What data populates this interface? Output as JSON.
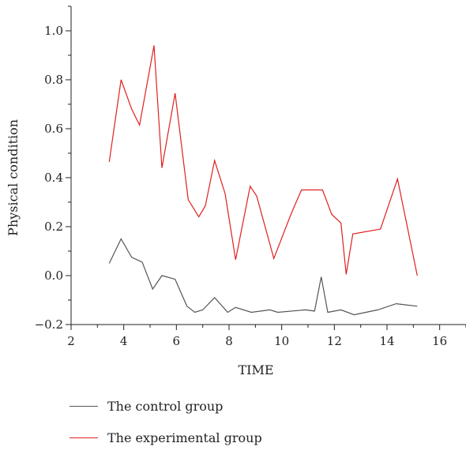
{
  "chart_data": {
    "type": "line",
    "xlabel": "TIME",
    "ylabel": "Physical condition",
    "xlim": [
      2,
      17
    ],
    "ylim": [
      -0.2,
      1.1
    ],
    "xticks": [
      2,
      4,
      6,
      8,
      10,
      12,
      14,
      16
    ],
    "yticks": [
      -0.2,
      0.0,
      0.2,
      0.4,
      0.6,
      0.8,
      1.0
    ],
    "ytick_labels": [
      "−0.2",
      "0.0",
      "0.2",
      "0.4",
      "0.6",
      "0.8",
      "1.0"
    ],
    "grid": false,
    "legend_position": "bottom-left",
    "series": [
      {
        "name": "The control group",
        "color": "#555555",
        "x": [
          3.45,
          3.9,
          4.3,
          4.7,
          5.1,
          5.45,
          5.95,
          6.4,
          6.7,
          7.0,
          7.45,
          7.95,
          8.25,
          8.85,
          9.55,
          9.85,
          10.9,
          11.25,
          11.5,
          11.75,
          12.25,
          12.75,
          13.2,
          13.65,
          14.35,
          15.15
        ],
        "y": [
          0.05,
          0.15,
          0.075,
          0.055,
          -0.055,
          0.0,
          -0.015,
          -0.125,
          -0.15,
          -0.14,
          -0.09,
          -0.15,
          -0.13,
          -0.15,
          -0.14,
          -0.15,
          -0.14,
          -0.145,
          -0.005,
          -0.15,
          -0.14,
          -0.16,
          -0.15,
          -0.14,
          -0.115,
          -0.125
        ]
      },
      {
        "name": "The experimental group",
        "color": "#e02020",
        "x": [
          3.45,
          3.9,
          4.3,
          4.6,
          5.15,
          5.45,
          5.95,
          6.45,
          6.85,
          7.1,
          7.45,
          7.85,
          8.25,
          8.8,
          9.05,
          9.7,
          10.35,
          10.75,
          11.55,
          11.9,
          12.25,
          12.45,
          12.7,
          13.75,
          14.4,
          15.15
        ],
        "y": [
          0.465,
          0.8,
          0.68,
          0.615,
          0.94,
          0.44,
          0.745,
          0.31,
          0.24,
          0.285,
          0.47,
          0.335,
          0.065,
          0.365,
          0.325,
          0.07,
          0.25,
          0.35,
          0.35,
          0.25,
          0.215,
          0.005,
          0.17,
          0.19,
          0.395,
          0.0
        ]
      }
    ]
  }
}
